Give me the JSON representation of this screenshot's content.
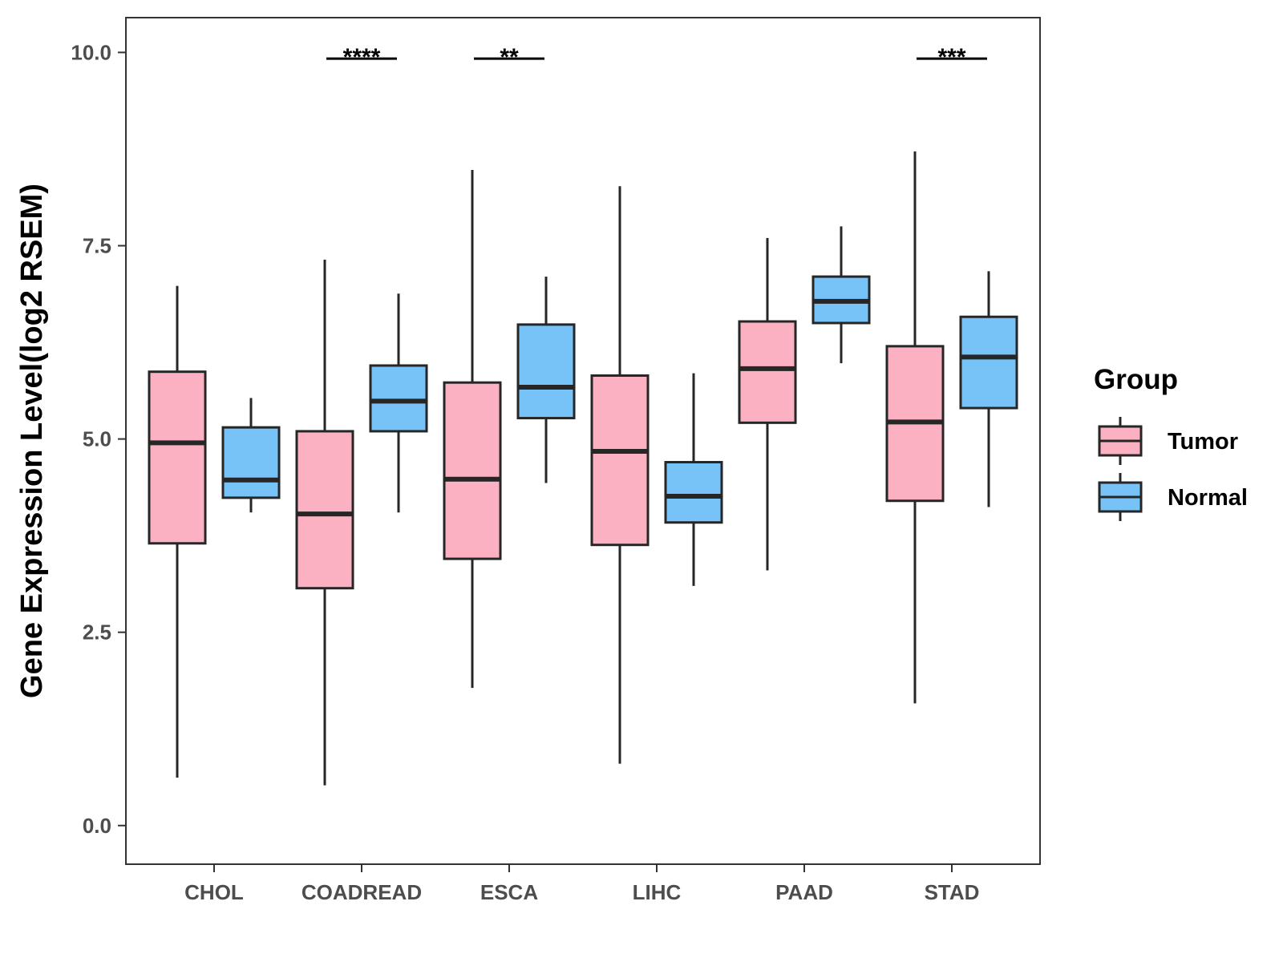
{
  "chart_data": {
    "type": "boxplot",
    "title": "",
    "xlabel": "",
    "ylabel": "Gene Expression Level(log2 RSEM)",
    "ylim": [
      -0.5,
      10.45
    ],
    "yticks": [
      0.0,
      2.5,
      5.0,
      7.5,
      10.0
    ],
    "ytick_labels": [
      "0.0",
      "2.5",
      "5.0",
      "7.5",
      "10.0"
    ],
    "categories": [
      "CHOL",
      "COADREAD",
      "ESCA",
      "LIHC",
      "PAAD",
      "STAD"
    ],
    "legend": {
      "title": "Group",
      "position": "right",
      "entries": [
        {
          "name": "Tumor",
          "color": "#fbb1c1"
        },
        {
          "name": "Normal",
          "color": "#77c3f8"
        }
      ]
    },
    "series": [
      {
        "name": "Tumor",
        "color": "#fbb1c1",
        "boxes": [
          {
            "category": "CHOL",
            "min": 0.62,
            "q1": 3.65,
            "median": 4.95,
            "q3": 5.87,
            "max": 6.98
          },
          {
            "category": "COADREAD",
            "min": 0.52,
            "q1": 3.07,
            "median": 4.03,
            "q3": 5.1,
            "max": 7.32
          },
          {
            "category": "ESCA",
            "min": 1.78,
            "q1": 3.45,
            "median": 4.48,
            "q3": 5.73,
            "max": 8.48
          },
          {
            "category": "LIHC",
            "min": 0.8,
            "q1": 3.63,
            "median": 4.84,
            "q3": 5.82,
            "max": 8.27
          },
          {
            "category": "PAAD",
            "min": 3.3,
            "q1": 5.21,
            "median": 5.91,
            "q3": 6.52,
            "max": 7.6
          },
          {
            "category": "STAD",
            "min": 1.58,
            "q1": 4.2,
            "median": 5.22,
            "q3": 6.2,
            "max": 8.72
          }
        ]
      },
      {
        "name": "Normal",
        "color": "#77c3f8",
        "boxes": [
          {
            "category": "CHOL",
            "min": 4.05,
            "q1": 4.24,
            "median": 4.47,
            "q3": 5.15,
            "max": 5.53
          },
          {
            "category": "COADREAD",
            "min": 4.05,
            "q1": 5.1,
            "median": 5.49,
            "q3": 5.95,
            "max": 6.88
          },
          {
            "category": "ESCA",
            "min": 4.43,
            "q1": 5.27,
            "median": 5.67,
            "q3": 6.48,
            "max": 7.1
          },
          {
            "category": "LIHC",
            "min": 3.1,
            "q1": 3.92,
            "median": 4.26,
            "q3": 4.7,
            "max": 5.85
          },
          {
            "category": "PAAD",
            "min": 5.98,
            "q1": 6.5,
            "median": 6.78,
            "q3": 7.1,
            "max": 7.75
          },
          {
            "category": "STAD",
            "min": 4.12,
            "q1": 5.4,
            "median": 6.06,
            "q3": 6.58,
            "max": 7.17
          }
        ]
      }
    ],
    "annotations": [
      {
        "category": "COADREAD",
        "text": "****",
        "y": 9.92
      },
      {
        "category": "ESCA",
        "text": "**",
        "y": 9.92
      },
      {
        "category": "STAD",
        "text": "***",
        "y": 9.92
      }
    ]
  }
}
